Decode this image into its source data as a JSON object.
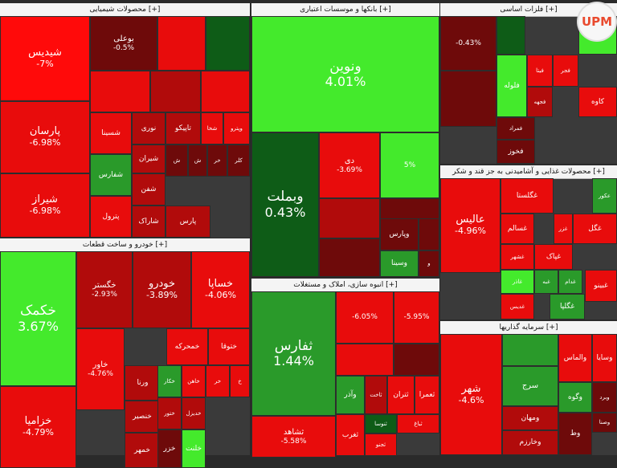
{
  "chart_data": {
    "type": "treemap",
    "colors": {
      "strong_red": "#ff0a0a",
      "red": "#e80c0c",
      "dark_red": "#b10b0b",
      "maroon": "#6e0a0a",
      "dark_green": "#0e5c17",
      "green": "#2a9a2a",
      "bright_green": "#44ea2c"
    },
    "sectors": [
      {
        "name": "محصولات شیمیایی [+]",
        "tiles": [
          {
            "n": "شیدیس",
            "p": "-7%",
            "c": "strong_red"
          },
          {
            "n": "پارسان",
            "p": "-6.98%",
            "c": "red"
          },
          {
            "n": "شیراز",
            "p": "-6.98%",
            "c": "red"
          },
          {
            "n": "بوعلی",
            "p": "-0.5%",
            "c": "maroon"
          },
          {
            "n": "",
            "p": "",
            "c": "red"
          },
          {
            "n": "",
            "p": "",
            "c": "dark_green"
          },
          {
            "n": "",
            "p": "",
            "c": "red"
          },
          {
            "n": "",
            "p": "",
            "c": "dark_red"
          },
          {
            "n": "",
            "p": "",
            "c": "red"
          },
          {
            "n": "شسینا",
            "p": "",
            "c": "red"
          },
          {
            "n": "نوری",
            "p": "",
            "c": "dark_red"
          },
          {
            "n": "تاپیکو",
            "p": "",
            "c": "dark_red"
          },
          {
            "n": "شخا",
            "p": "",
            "c": "red"
          },
          {
            "n": "وپترو",
            "p": "",
            "c": "red"
          },
          {
            "n": "شفارس",
            "p": "",
            "c": "green"
          },
          {
            "n": "شیران",
            "p": "",
            "c": "dark_red"
          },
          {
            "n": "ش",
            "p": "",
            "c": "maroon"
          },
          {
            "n": "ش",
            "p": "",
            "c": "maroon"
          },
          {
            "n": "خر",
            "p": "",
            "c": "maroon"
          },
          {
            "n": "کلر",
            "p": "",
            "c": "maroon"
          },
          {
            "n": "پترول",
            "p": "",
            "c": "red"
          },
          {
            "n": "شفن",
            "p": "",
            "c": "dark_red"
          },
          {
            "n": "شاراک",
            "p": "",
            "c": "dark_red"
          },
          {
            "n": "پارس",
            "p": "",
            "c": "dark_red"
          }
        ]
      },
      {
        "name": "بانکها و موسسات اعتباری [+]",
        "tiles": [
          {
            "n": "ونوین",
            "p": "4.01%",
            "c": "bright_green"
          },
          {
            "n": "وبملت",
            "p": "0.43%",
            "c": "dark_green"
          },
          {
            "n": "دی",
            "p": "-3.69%",
            "c": "red"
          },
          {
            "n": "",
            "p": "5%",
            "c": "bright_green"
          },
          {
            "n": "",
            "p": "",
            "c": "dark_red"
          },
          {
            "n": "",
            "p": "",
            "c": "maroon"
          },
          {
            "n": "",
            "p": "",
            "c": "maroon"
          },
          {
            "n": "وپارس",
            "p": "",
            "c": "maroon"
          },
          {
            "n": "",
            "p": "",
            "c": "maroon"
          },
          {
            "n": "وسینا",
            "p": "",
            "c": "green"
          },
          {
            "n": "و",
            "p": "",
            "c": "maroon"
          }
        ]
      },
      {
        "name": "فلزات اساسی [+]",
        "tiles": [
          {
            "n": "",
            "p": "-0.43%",
            "c": "maroon"
          },
          {
            "n": "",
            "p": "",
            "c": "maroon"
          },
          {
            "n": "",
            "p": "",
            "c": "dark_green"
          },
          {
            "n": "",
            "p": "",
            "c": "bright_green"
          },
          {
            "n": "فلوله",
            "p": "",
            "c": "bright_green"
          },
          {
            "n": "فجر",
            "p": "",
            "c": "red"
          },
          {
            "n": "فیتا",
            "p": "",
            "c": "red"
          },
          {
            "n": "فجهه",
            "p": "",
            "c": "dark_red"
          },
          {
            "n": "کاوه",
            "p": "",
            "c": "red"
          },
          {
            "n": "فمراد",
            "p": "",
            "c": "maroon"
          },
          {
            "n": "فخوز",
            "p": "",
            "c": "maroon"
          }
        ]
      },
      {
        "name": "محصولات غذایی و آشامیدنی به جز قند و شکر [+]",
        "tiles": [
          {
            "n": "غگلستا",
            "p": "",
            "c": "red"
          },
          {
            "n": "عکور",
            "p": "",
            "c": "green"
          },
          {
            "n": "عالیس",
            "p": "-4.96%",
            "c": "red"
          },
          {
            "n": "غسالم",
            "p": "",
            "c": "red"
          },
          {
            "n": "غزر",
            "p": "",
            "c": "red"
          },
          {
            "n": "غگل",
            "p": "",
            "c": "red"
          },
          {
            "n": "غشهر",
            "p": "",
            "c": "red"
          },
          {
            "n": "غپاک",
            "p": "",
            "c": "red"
          },
          {
            "n": "غاذر",
            "p": "",
            "c": "bright_green"
          },
          {
            "n": "غبه",
            "p": "",
            "c": "green"
          },
          {
            "n": "غدام",
            "p": "",
            "c": "green"
          },
          {
            "n": "غدیس",
            "p": "",
            "c": "red"
          },
          {
            "n": "غگلپا",
            "p": "",
            "c": "green"
          },
          {
            "n": "غبینو",
            "p": "",
            "c": "red"
          }
        ]
      },
      {
        "name": "خودرو و ساخت قطعات [+]",
        "tiles": [
          {
            "n": "خکمک",
            "p": "3.67%",
            "c": "bright_green"
          },
          {
            "n": "خگستر",
            "p": "-2.93%",
            "c": "dark_red"
          },
          {
            "n": "خودرو",
            "p": "-3.89%",
            "c": "dark_red"
          },
          {
            "n": "خساپا",
            "p": "-4.06%",
            "c": "red"
          },
          {
            "n": "خزامیا",
            "p": "-4.79%",
            "c": "red"
          },
          {
            "n": "خاور",
            "p": "-4.76%",
            "c": "red"
          },
          {
            "n": "خمحرکه",
            "p": "",
            "c": "red"
          },
          {
            "n": "ختوقا",
            "p": "",
            "c": "red"
          },
          {
            "n": "ورنا",
            "p": "",
            "c": "dark_red"
          },
          {
            "n": "خکار",
            "p": "",
            "c": "green"
          },
          {
            "n": "خاهن",
            "p": "",
            "c": "red"
          },
          {
            "n": "خر",
            "p": "",
            "c": "red"
          },
          {
            "n": "خ",
            "p": "",
            "c": "red"
          },
          {
            "n": "خنصیر",
            "p": "",
            "c": "dark_red"
          },
          {
            "n": "ختور",
            "p": "",
            "c": "dark_red"
          },
          {
            "n": "خدیزل",
            "p": "",
            "c": "dark_red"
          },
          {
            "n": "خمهر",
            "p": "",
            "c": "dark_red"
          },
          {
            "n": "خزر",
            "p": "",
            "c": "maroon"
          },
          {
            "n": "خلنت",
            "p": "",
            "c": "bright_green"
          }
        ]
      },
      {
        "name": "انبوه سازی، املاک و مستغلات [+]",
        "tiles": [
          {
            "n": "ثفارس",
            "p": "1.44%",
            "c": "green"
          },
          {
            "n": "ثشاهد",
            "p": "-5.58%",
            "c": "red"
          },
          {
            "n": "",
            "p": "-6.05%",
            "c": "red"
          },
          {
            "n": "",
            "p": "-5.95%",
            "c": "red"
          },
          {
            "n": "",
            "p": "",
            "c": "red"
          },
          {
            "n": "",
            "p": "",
            "c": "maroon"
          },
          {
            "n": "وآذر",
            "p": "",
            "c": "green"
          },
          {
            "n": "ثاخت",
            "p": "",
            "c": "dark_red"
          },
          {
            "n": "ثتران",
            "p": "",
            "c": "red"
          },
          {
            "n": "ثعمرا",
            "p": "",
            "c": "red"
          },
          {
            "n": "ثنوسا",
            "p": "",
            "c": "dark_green"
          },
          {
            "n": "ثباغ",
            "p": "",
            "c": "red"
          },
          {
            "n": "ثغرب",
            "p": "",
            "c": "red"
          },
          {
            "n": "ثجنو",
            "p": "",
            "c": "red"
          }
        ]
      },
      {
        "name": "سرمایه گذاریها [+]",
        "tiles": [
          {
            "n": "شهر",
            "p": "-4.6%",
            "c": "red"
          },
          {
            "n": "",
            "p": "",
            "c": "green"
          },
          {
            "n": "والماس",
            "p": "",
            "c": "red"
          },
          {
            "n": "وسایا",
            "p": "",
            "c": "red"
          },
          {
            "n": "سرج",
            "p": "",
            "c": "green"
          },
          {
            "n": "وگوه",
            "p": "",
            "c": "green"
          },
          {
            "n": "وبرد",
            "p": "",
            "c": "maroon"
          },
          {
            "n": "وصنا",
            "p": "",
            "c": "maroon"
          },
          {
            "n": "ومهان",
            "p": "",
            "c": "dark_red"
          },
          {
            "n": "وخارزم",
            "p": "",
            "c": "dark_red"
          },
          {
            "n": "وط",
            "p": "",
            "c": "maroon"
          }
        ]
      }
    ]
  },
  "branding": {
    "logo_text": "UPM"
  }
}
